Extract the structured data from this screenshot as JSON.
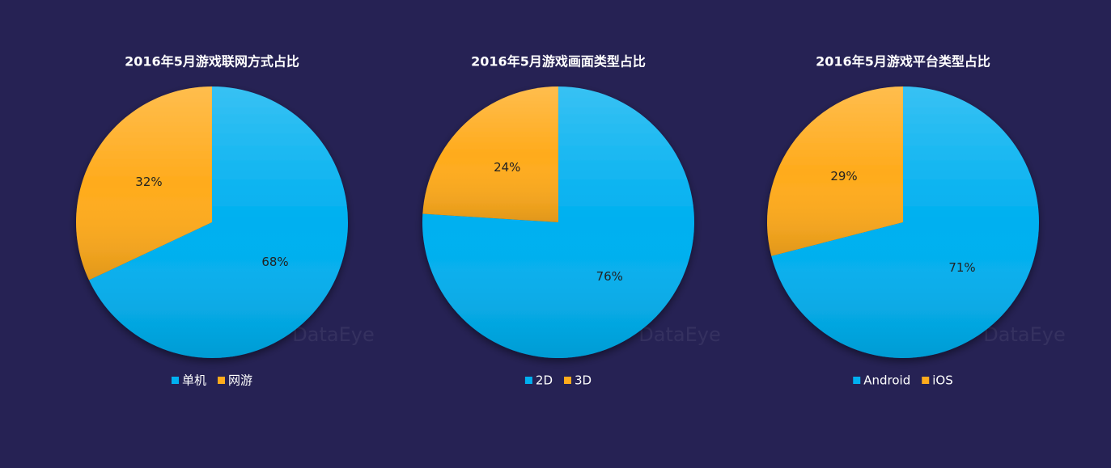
{
  "watermark": "DataEye",
  "chart_data": [
    {
      "type": "pie",
      "title": "2016年5月游戏联网方式占比",
      "categories": [
        "单机",
        "网游"
      ],
      "values": [
        68,
        32
      ],
      "value_labels": [
        "68%",
        "32%"
      ],
      "colors": [
        "#00b0f0",
        "#ffab1c"
      ],
      "legend": "bottom"
    },
    {
      "type": "pie",
      "title": "2016年5月游戏画面类型占比",
      "categories": [
        "2D",
        "3D"
      ],
      "values": [
        76,
        24
      ],
      "value_labels": [
        "76%",
        "24%"
      ],
      "colors": [
        "#00b0f0",
        "#ffab1c"
      ],
      "legend": "bottom"
    },
    {
      "type": "pie",
      "title": "2016年5月游戏平台类型占比",
      "categories": [
        "Android",
        "iOS"
      ],
      "values": [
        71,
        29
      ],
      "value_labels": [
        "71%",
        "29%"
      ],
      "colors": [
        "#00b0f0",
        "#ffab1c"
      ],
      "legend": "bottom"
    }
  ]
}
